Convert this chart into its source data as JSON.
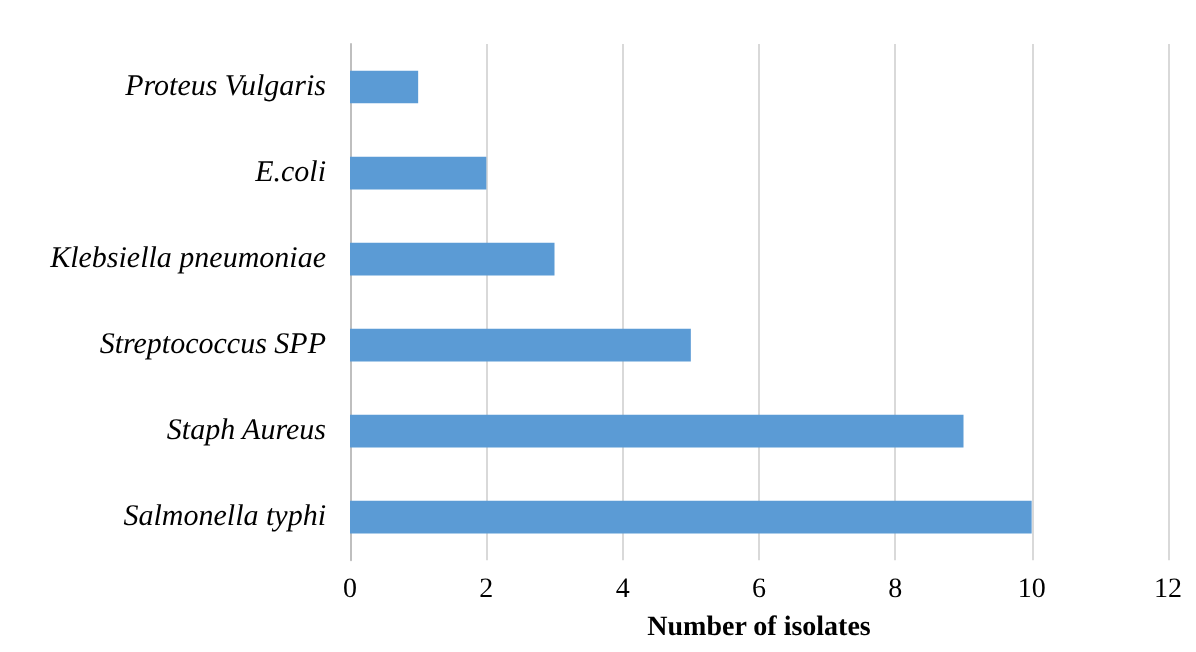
{
  "chart_data": {
    "type": "bar",
    "orientation": "horizontal",
    "xlabel": "Number of isolates",
    "categories": [
      "Proteus Vulgaris",
      "E.coli",
      "Klebsiella pneumoniae",
      "Streptococcus SPP",
      "Staph Aureus",
      "Salmonella typhi"
    ],
    "values": [
      1,
      2,
      3,
      5,
      9,
      10
    ],
    "color": "#5b9bd5",
    "xlim": [
      0,
      12
    ],
    "xticks": [
      0,
      2,
      4,
      6,
      8,
      10,
      12
    ],
    "grid": "x"
  }
}
